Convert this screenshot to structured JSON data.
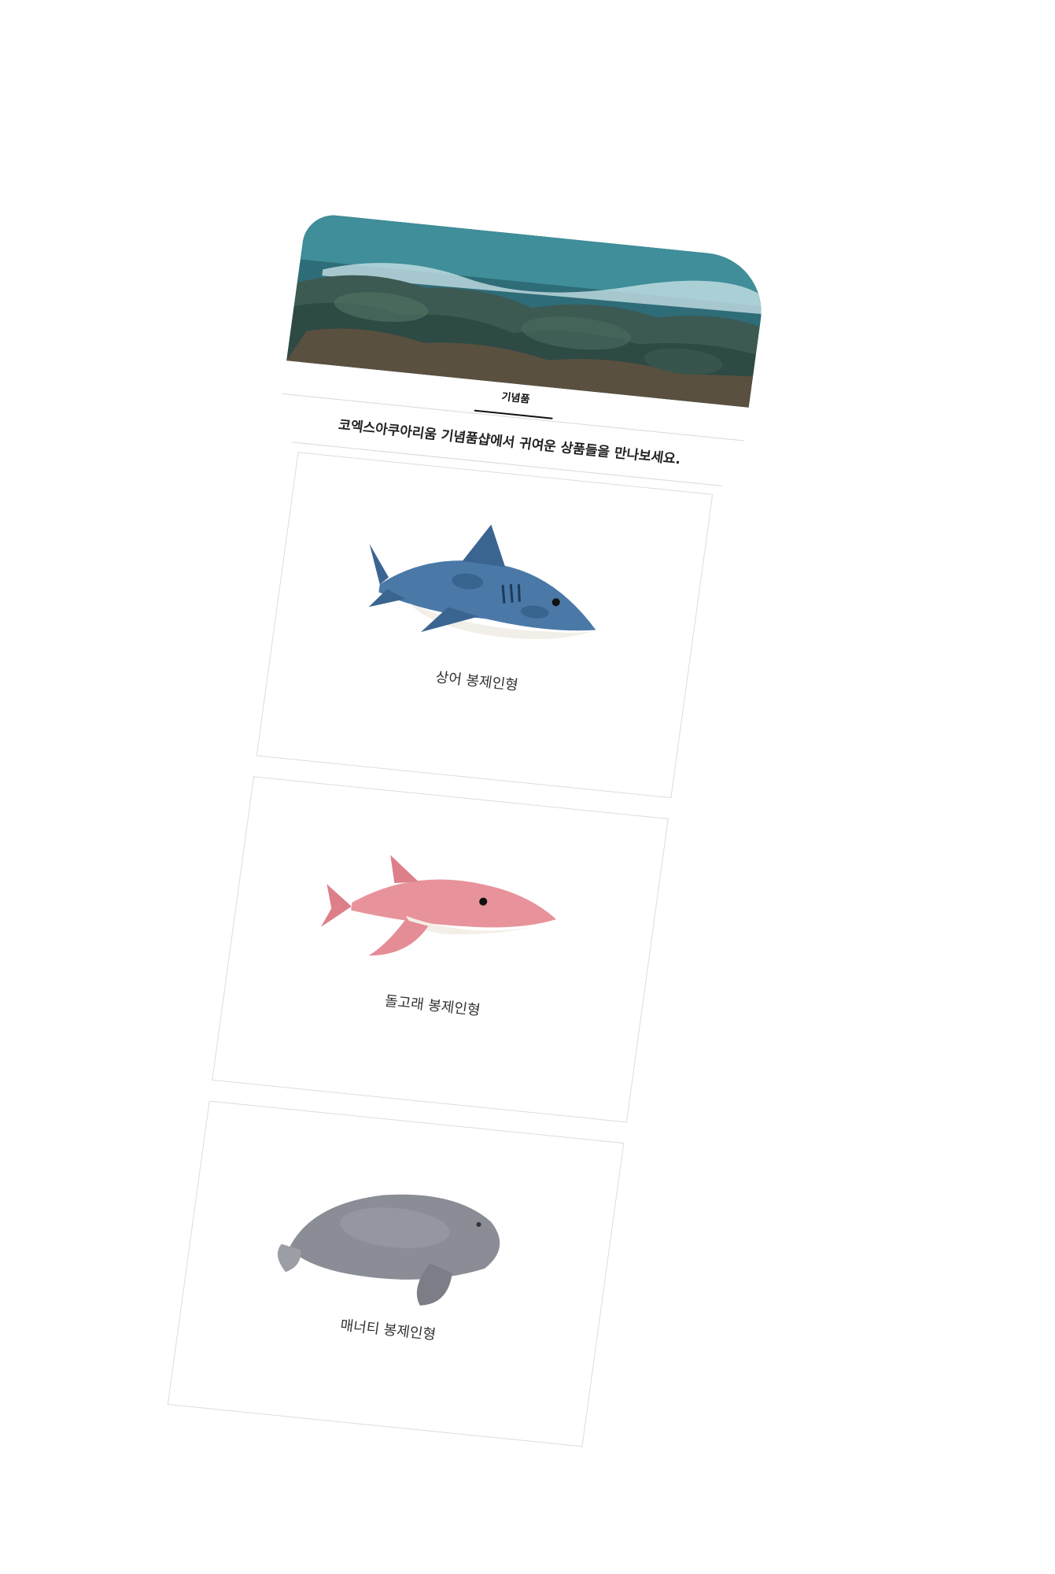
{
  "tabs": [
    {
      "label": "기념품",
      "active": true
    }
  ],
  "intro_text": "코엑스아쿠아리움 기념품샵에서 귀여운 상품들을 만나보세요.",
  "products": [
    {
      "name": "상어 봉제인형",
      "icon": "shark-plush-icon"
    },
    {
      "name": "돌고래 봉제인형",
      "icon": "dolphin-plush-icon"
    },
    {
      "name": "매너티 봉제인형",
      "icon": "manatee-plush-icon"
    }
  ],
  "colors": {
    "tab_indicator": "#111111",
    "divider": "#d9d9d9",
    "shark": "#3f6e9c",
    "dolphin": "#e8939b",
    "manatee": "#8b8d96"
  }
}
